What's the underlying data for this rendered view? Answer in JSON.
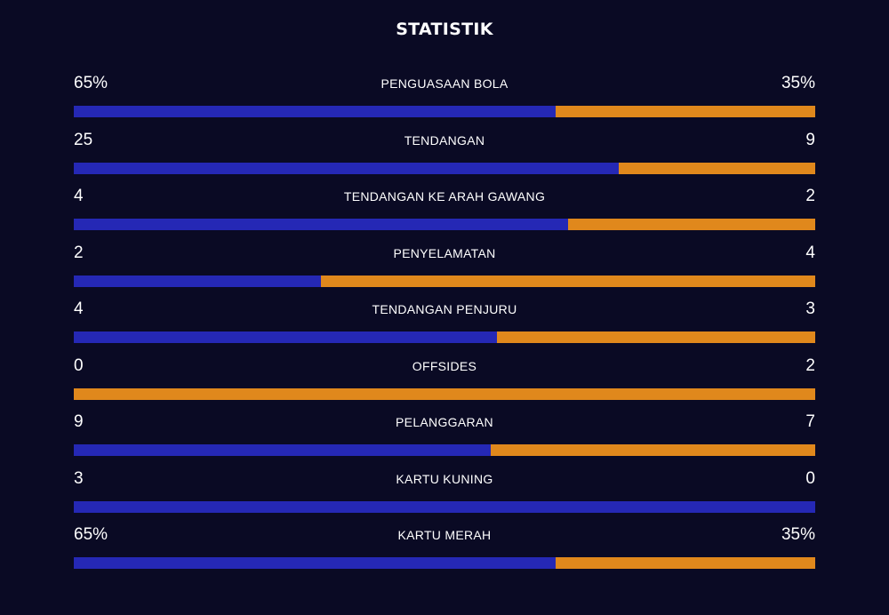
{
  "title": "STATISTIK",
  "colors": {
    "background": "#0a0a24",
    "home": "#2528b5",
    "away": "#e0881c"
  },
  "stats": [
    {
      "label": "PENGUASAAN BOLA",
      "home": "65%",
      "away": "35%",
      "home_share": 0.65
    },
    {
      "label": "TENDANGAN",
      "home": "25",
      "away": "9",
      "home_share": 0.735
    },
    {
      "label": "TENDANGAN KE ARAH GAWANG",
      "home": "4",
      "away": "2",
      "home_share": 0.667
    },
    {
      "label": "PENYELAMATAN",
      "home": "2",
      "away": "4",
      "home_share": 0.333
    },
    {
      "label": "TENDANGAN PENJURU",
      "home": "4",
      "away": "3",
      "home_share": 0.571
    },
    {
      "label": "OFFSIDES",
      "home": "0",
      "away": "2",
      "home_share": 0.0
    },
    {
      "label": "PELANGGARAN",
      "home": "9",
      "away": "7",
      "home_share": 0.5625
    },
    {
      "label": "KARTU KUNING",
      "home": "3",
      "away": "0",
      "home_share": 1.0
    },
    {
      "label": "KARTU MERAH",
      "home": "65%",
      "away": "35%",
      "home_share": 0.65
    }
  ],
  "chart_data": {
    "type": "bar",
    "categories": [
      "PENGUASAAN BOLA",
      "TENDANGAN",
      "TENDANGAN KE ARAH GAWANG",
      "PENYELAMATAN",
      "TENDANGAN PENJURU",
      "OFFSIDES",
      "PELANGGARAN",
      "KARTU KUNING",
      "KARTU MERAH"
    ],
    "series": [
      {
        "values": [
          65,
          25,
          4,
          2,
          4,
          0,
          9,
          3,
          65
        ]
      },
      {
        "values": [
          35,
          9,
          2,
          4,
          3,
          2,
          7,
          0,
          35
        ]
      }
    ],
    "stacked": true,
    "orientation": "horizontal",
    "normalized": true,
    "title": "STATISTIK",
    "xlabel": "",
    "ylabel": "",
    "grid": false
  }
}
